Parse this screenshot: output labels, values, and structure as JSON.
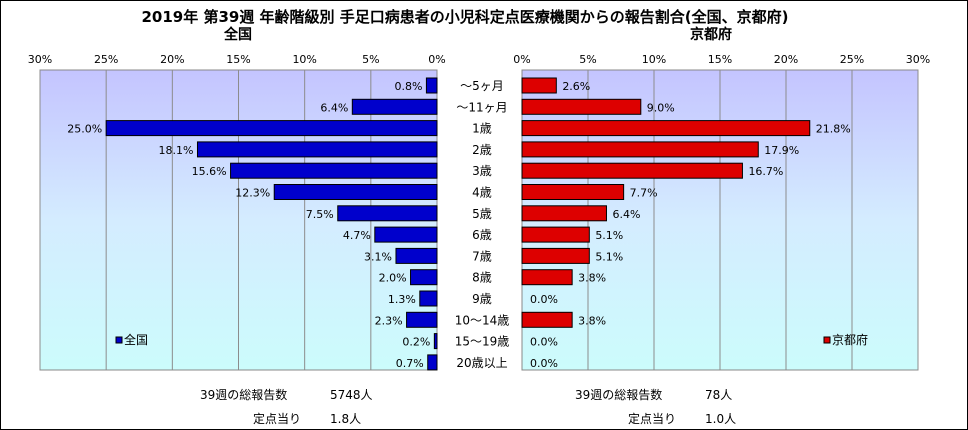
{
  "title": "2019年 第39週 年齢階級別 手足口病患者の小児科定点医療機関からの報告割合(全国、京都府)",
  "categories": [
    "～5ヶ月",
    "～11ヶ月",
    "1歳",
    "2歳",
    "3歳",
    "4歳",
    "5歳",
    "6歳",
    "7歳",
    "8歳",
    "9歳",
    "10～14歳",
    "15～19歳",
    "20歳以上"
  ],
  "chart_data": [
    {
      "type": "bar",
      "title": "全国",
      "orientation": "horizontal-reversed",
      "xlim": [
        0,
        30
      ],
      "ticks": [
        "0%",
        "5%",
        "10%",
        "15%",
        "20%",
        "25%",
        "30%"
      ],
      "legend": "bottom-left",
      "color": "#0000cc",
      "series": [
        {
          "name": "全国",
          "values": [
            0.8,
            6.4,
            25.0,
            18.1,
            15.6,
            12.3,
            7.5,
            4.7,
            3.1,
            2.0,
            1.3,
            2.3,
            0.2,
            0.7
          ]
        }
      ],
      "labels": [
        "0.8%",
        "6.4%",
        "25.0%",
        "18.1%",
        "15.6%",
        "12.3%",
        "7.5%",
        "4.7%",
        "3.1%",
        "2.0%",
        "1.3%",
        "2.3%",
        "0.2%",
        "0.7%"
      ]
    },
    {
      "type": "bar",
      "title": "京都府",
      "orientation": "horizontal",
      "xlim": [
        0,
        30
      ],
      "ticks": [
        "0%",
        "5%",
        "10%",
        "15%",
        "20%",
        "25%",
        "30%"
      ],
      "legend": "bottom-right",
      "color": "#dd0000",
      "series": [
        {
          "name": "京都府",
          "values": [
            2.6,
            9.0,
            21.8,
            17.9,
            16.7,
            7.7,
            6.4,
            5.1,
            5.1,
            3.8,
            0.0,
            3.8,
            0.0,
            0.0
          ]
        }
      ],
      "labels": [
        "2.6%",
        "9.0%",
        "21.8%",
        "17.9%",
        "16.7%",
        "7.7%",
        "6.4%",
        "5.1%",
        "5.1%",
        "3.8%",
        "0.0%",
        "3.8%",
        "0.0%",
        "0.0%"
      ]
    }
  ],
  "footer": {
    "national_total_label": "39週の総報告数",
    "national_total_value": "5748人",
    "national_per_label": "定点当り",
    "national_per_value": "1.8人",
    "kyoto_total_label": "39週の総報告数",
    "kyoto_total_value": "78人",
    "kyoto_per_label": "定点当り",
    "kyoto_per_value": "1.0人"
  }
}
